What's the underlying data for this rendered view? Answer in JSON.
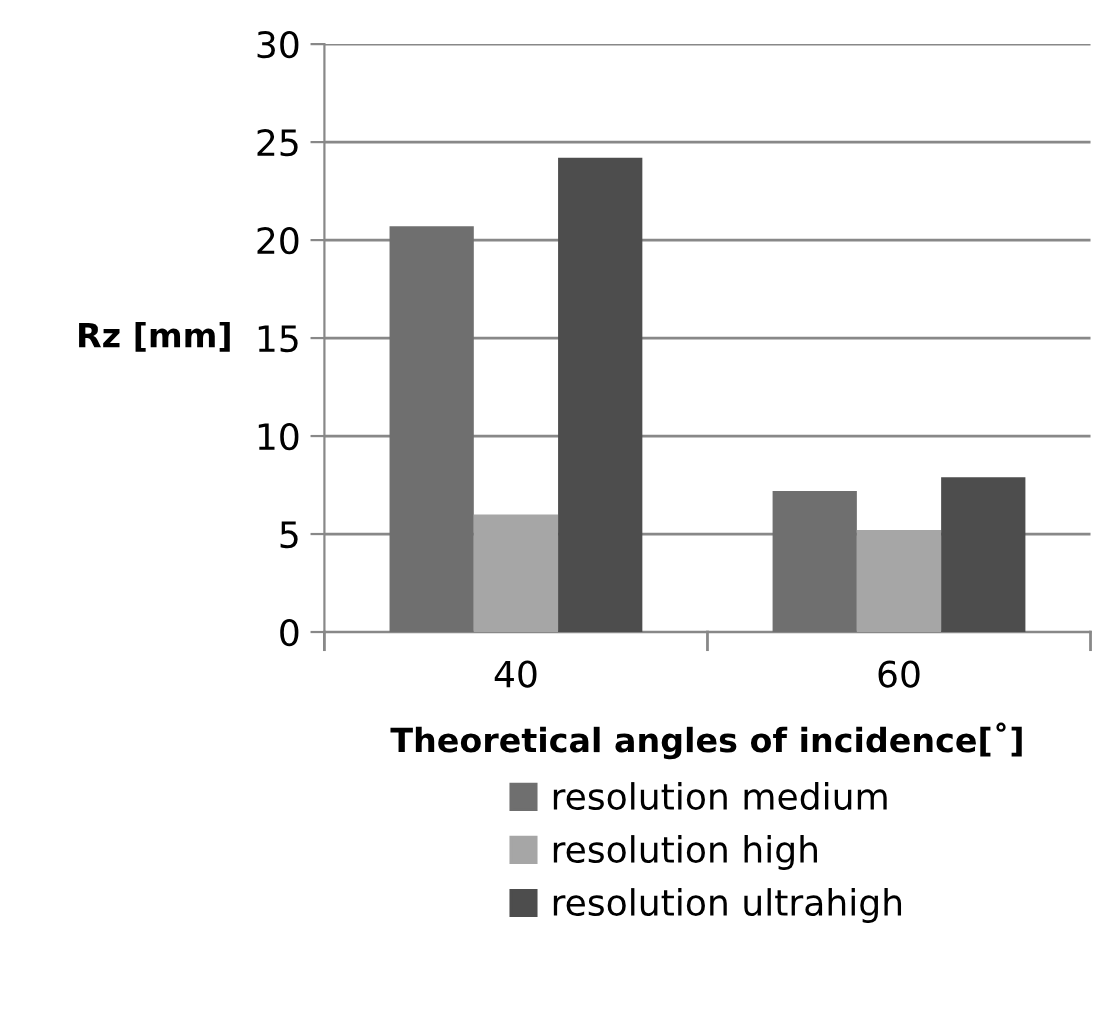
{
  "chart_data": {
    "type": "bar",
    "xlabel": "Theoretical angles of incidence[˚]",
    "ylabel": "Rz [mm]",
    "categories": [
      "40",
      "60"
    ],
    "series": [
      {
        "name": "resolution medium",
        "color": "#6f6f6f",
        "values": [
          20.7,
          7.2
        ]
      },
      {
        "name": "resolution high",
        "color": "#a6a6a6",
        "values": [
          6.0,
          5.2
        ]
      },
      {
        "name": "resolution ultrahigh",
        "color": "#4d4d4d",
        "values": [
          24.2,
          7.9
        ]
      }
    ],
    "ylim": [
      0,
      30
    ],
    "yticks": [
      0,
      5,
      10,
      15,
      20,
      25,
      30
    ],
    "grid": "y",
    "legend": "bottom"
  }
}
